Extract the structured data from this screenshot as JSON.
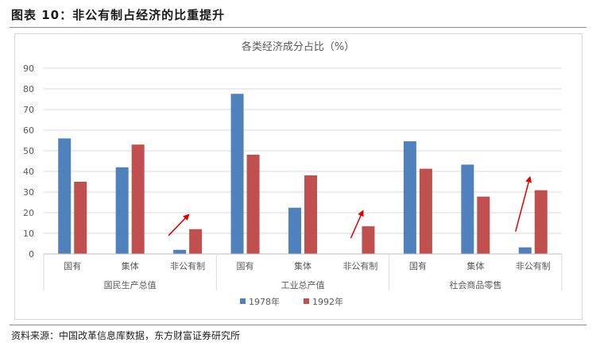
{
  "header": {
    "figure_title": "图表 10：非公有制占经济的比重提升"
  },
  "footer": {
    "source": "资料来源：中国改革信息库数据，东方财富证券研究所"
  },
  "colors": {
    "series_1978": "#4F81BD",
    "series_1992": "#C0504D",
    "arrow": "#E00000",
    "grid": "#D9D9D9"
  },
  "chart_data": {
    "type": "bar",
    "title": "各类经济成分占比（%）",
    "xlabel": "",
    "ylabel": "",
    "ylim": [
      0,
      90
    ],
    "yticks": [
      0,
      10,
      20,
      30,
      40,
      50,
      60,
      70,
      80,
      90
    ],
    "grid": true,
    "legend_position": "bottom",
    "groups": [
      {
        "name": "国民生产总值",
        "categories": [
          "国有",
          "集体",
          "非公有制"
        ]
      },
      {
        "name": "工业总产值",
        "categories": [
          "国有",
          "集体",
          "非公有制"
        ]
      },
      {
        "name": "社会商品零售",
        "categories": [
          "国有",
          "集体",
          "非公有制"
        ]
      }
    ],
    "series": [
      {
        "name": "1978年",
        "values": [
          56,
          42,
          2,
          77.6,
          22.4,
          0,
          54.6,
          43.3,
          3.2
        ]
      },
      {
        "name": "1992年",
        "values": [
          35,
          53,
          12,
          48.1,
          38.1,
          13.4,
          41.3,
          27.8,
          30.9
        ]
      }
    ],
    "annotations": [
      "up-arrow over 国民生产总值 非公有制",
      "up-arrow over 工业总产值 非公有制",
      "up-arrow over 社会商品零售 非公有制"
    ]
  }
}
